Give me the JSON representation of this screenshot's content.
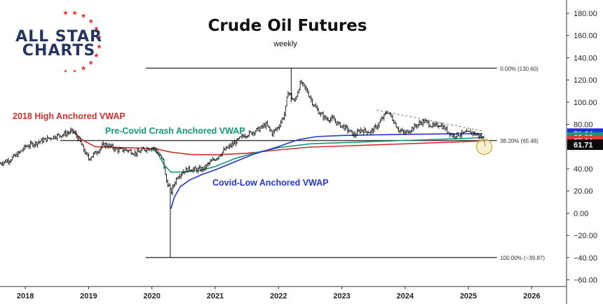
{
  "chart_data": {
    "type": "line",
    "title": "Crude Oil Futures",
    "subtitle": "weekly",
    "y_axis_labels": [
      "180.00",
      "160.00",
      "140.00",
      "120.00",
      "100.00",
      "80.00",
      "60.00",
      "40.00",
      "20.00",
      "0.00",
      "−20.00",
      "−40.00",
      "−60.00"
    ],
    "y_ticks": [
      180,
      160,
      140,
      120,
      100,
      80,
      60,
      40,
      20,
      0,
      -20,
      -40,
      -60
    ],
    "ylim": [
      -66,
      192
    ],
    "x_axis_labels": [
      "2018",
      "2019",
      "2020",
      "2021",
      "2022",
      "2023",
      "2024",
      "2025",
      "2026"
    ],
    "x_ticks": [
      2018,
      2019,
      2020,
      2021,
      2022,
      2023,
      2024,
      2025,
      2026
    ],
    "xlim": [
      2017.6,
      2026.55
    ],
    "grid": false,
    "price_series": {
      "name": "Crude Oil Futures",
      "x": [
        2017.6,
        2017.75,
        2017.9,
        2018.0,
        2018.15,
        2018.3,
        2018.45,
        2018.6,
        2018.75,
        2018.85,
        2018.95,
        2019.0,
        2019.1,
        2019.25,
        2019.35,
        2019.45,
        2019.6,
        2019.75,
        2019.9,
        2020.0,
        2020.05,
        2020.12,
        2020.18,
        2020.22,
        2020.27,
        2020.3,
        2020.34,
        2020.4,
        2020.5,
        2020.6,
        2020.7,
        2020.82,
        2020.9,
        2021.0,
        2021.15,
        2021.3,
        2021.45,
        2021.55,
        2021.7,
        2021.8,
        2021.9,
        2022.0,
        2022.1,
        2022.15,
        2022.25,
        2022.35,
        2022.45,
        2022.55,
        2022.65,
        2022.75,
        2022.85,
        2022.95,
        2023.05,
        2023.2,
        2023.3,
        2023.45,
        2023.55,
        2023.65,
        2023.72,
        2023.8,
        2023.9,
        2024.0,
        2024.1,
        2024.2,
        2024.3,
        2024.45,
        2024.55,
        2024.65,
        2024.75,
        2024.85,
        2024.95,
        2025.05,
        2025.15,
        2025.22,
        2025.27
      ],
      "y": [
        45,
        48,
        54,
        60,
        63,
        66,
        69,
        71,
        74,
        66,
        54,
        49,
        54,
        62,
        60,
        57,
        57,
        54,
        58,
        59,
        58,
        52,
        47,
        30,
        24,
        18,
        25,
        33,
        38,
        40,
        39,
        40,
        45,
        49,
        57,
        63,
        70,
        72,
        76,
        80,
        72,
        78,
        90,
        110,
        100,
        118,
        110,
        98,
        90,
        85,
        85,
        80,
        77,
        70,
        75,
        73,
        78,
        86,
        92,
        85,
        75,
        72,
        76,
        80,
        83,
        78,
        80,
        75,
        70,
        71,
        72,
        73,
        70,
        68,
        63
      ],
      "color": "#000000"
    },
    "series": [
      {
        "name": "2018 High Anchored VWAP",
        "color": "#d32f2f",
        "x": [
          2018.75,
          2018.9,
          2019.1,
          2019.5,
          2019.9,
          2020.1,
          2020.3,
          2020.6,
          2021.0,
          2021.5,
          2022.0,
          2022.5,
          2023.0,
          2023.5,
          2024.0,
          2024.5,
          2025.0,
          2025.22
        ],
        "y": [
          74,
          66,
          60,
          59,
          58.5,
          57.5,
          55,
          53,
          52.5,
          54,
          57,
          59.5,
          60.5,
          61.5,
          62.5,
          63.5,
          64.5,
          65.14
        ]
      },
      {
        "name": "Pre-Covid Crash Anchored VWAP",
        "color": "#17977b",
        "x": [
          2020.0,
          2020.1,
          2020.2,
          2020.3,
          2020.5,
          2020.8,
          2021.0,
          2021.3,
          2021.6,
          2022.0,
          2022.5,
          2023.0,
          2023.5,
          2024.0,
          2024.5,
          2025.0,
          2025.22
        ],
        "y": [
          59,
          53,
          43,
          37,
          37,
          39,
          42,
          49,
          54,
          59,
          62.5,
          63.5,
          64.5,
          65.5,
          66.5,
          67.5,
          68.28
        ]
      },
      {
        "name": "Covid-Low Anchored VWAP",
        "color": "#2437c8",
        "x": [
          2020.3,
          2020.35,
          2020.45,
          2020.6,
          2020.8,
          2021.0,
          2021.3,
          2021.6,
          2022.0,
          2022.3,
          2022.6,
          2023.0,
          2023.5,
          2024.0,
          2024.5,
          2025.0,
          2025.22
        ],
        "y": [
          4,
          14,
          24,
          30,
          35,
          39,
          46,
          53,
          60,
          66,
          69,
          70,
          70.5,
          71,
          71.3,
          71.5,
          71.64
        ]
      }
    ],
    "price_labels": [
      {
        "value": 71.64,
        "text": "71.64",
        "bg": "#1e2fd6",
        "fg": "#ffffff"
      },
      {
        "value": 68.28,
        "text": "68.28",
        "bg": "#17977b",
        "fg": "#ffffff"
      },
      {
        "value": 65.14,
        "text": "65.14",
        "bg": "#e53935",
        "fg": "#ffffff"
      },
      {
        "value": 61.71,
        "text": "61.71",
        "bg": "#0b0b0b",
        "fg": "#ffffff"
      }
    ],
    "fib_levels": [
      {
        "value": 130.6,
        "label": "0.00% (130.60)"
      },
      {
        "value": 65.48,
        "label": "38.20% (65.48)"
      },
      {
        "value": -39.87,
        "label": "100.00% (−39.87)"
      }
    ],
    "trendline": {
      "x": [
        2023.55,
        2025.22
      ],
      "y": [
        93,
        74
      ]
    },
    "highlight": {
      "x": 2025.25,
      "y": 61.71
    },
    "annotations": [
      {
        "text": "2018 High Anchored VWAP",
        "color": "#d32f2f"
      },
      {
        "text": "Pre-Covid Crash Anchored VWAP",
        "color": "#17977b"
      },
      {
        "text": "Covid-Low Anchored VWAP",
        "color": "#2437c8"
      }
    ]
  },
  "logo": {
    "line1": "ALL STAR",
    "line2": "CHARTS",
    "color": "#26365f",
    "star_color": "#e53935"
  }
}
